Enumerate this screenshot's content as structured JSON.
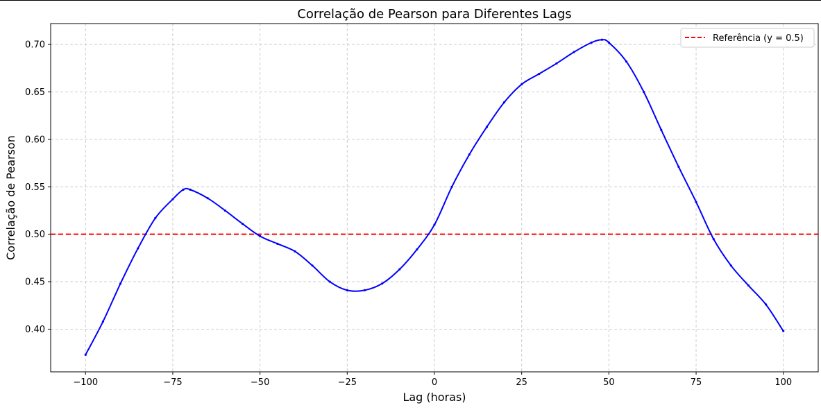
{
  "chart_data": {
    "type": "line",
    "title": "Correlação de Pearson para Diferentes Lags",
    "xlabel": "Lag (horas)",
    "ylabel": "Correlação de Pearson",
    "xlim": [
      -110,
      110
    ],
    "ylim": [
      0.355,
      0.722
    ],
    "x_ticks": [
      -100,
      -75,
      -50,
      -25,
      0,
      25,
      50,
      75,
      100
    ],
    "x_tick_labels": [
      "−100",
      "−75",
      "−50",
      "−25",
      "0",
      "25",
      "50",
      "75",
      "100"
    ],
    "y_ticks": [
      0.4,
      0.45,
      0.5,
      0.55,
      0.6,
      0.65,
      0.7
    ],
    "y_tick_labels": [
      "0.40",
      "0.45",
      "0.50",
      "0.55",
      "0.60",
      "0.65",
      "0.70"
    ],
    "grid": true,
    "legend_position": "top-right",
    "series": [
      {
        "color": "#0000ff",
        "marker": "dot",
        "x": [
          -100,
          -95,
          -90,
          -85,
          -80,
          -75,
          -72,
          -70,
          -65,
          -60,
          -55,
          -50,
          -45,
          -40,
          -35,
          -30,
          -25,
          -20,
          -15,
          -10,
          -5,
          0,
          5,
          10,
          15,
          20,
          25,
          30,
          35,
          40,
          45,
          48,
          50,
          55,
          60,
          65,
          70,
          75,
          80,
          85,
          90,
          95,
          100
        ],
        "values": [
          0.373,
          0.408,
          0.448,
          0.485,
          0.517,
          0.537,
          0.547,
          0.547,
          0.538,
          0.525,
          0.511,
          0.498,
          0.49,
          0.482,
          0.467,
          0.45,
          0.441,
          0.441,
          0.448,
          0.463,
          0.484,
          0.51,
          0.55,
          0.584,
          0.613,
          0.639,
          0.658,
          0.669,
          0.68,
          0.692,
          0.702,
          0.705,
          0.702,
          0.682,
          0.65,
          0.61,
          0.571,
          0.534,
          0.495,
          0.467,
          0.446,
          0.426,
          0.398
        ]
      }
    ],
    "reference_line": {
      "label": "Referência (y = 0.5)",
      "y": 0.5,
      "color": "#ff0000",
      "style": "dashed"
    }
  }
}
